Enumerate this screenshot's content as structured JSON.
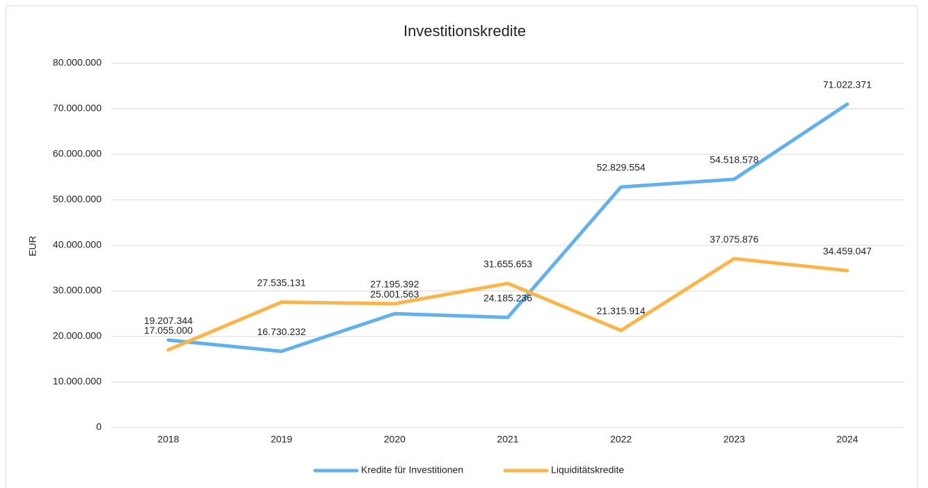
{
  "chart_data": {
    "type": "line",
    "title": "Investitionskredite",
    "y_label": "EUR",
    "categories": [
      "2018",
      "2019",
      "2020",
      "2021",
      "2022",
      "2023",
      "2024"
    ],
    "series": [
      {
        "name": "Kredite für Investitionen",
        "color": "#62b0ec",
        "values": [
          19207344,
          16730232,
          25001563,
          24185236,
          52829554,
          54518578,
          71022371
        ],
        "value_labels": [
          "19.207.344",
          "16.730.232",
          "25.001.563",
          "24.185.236",
          "52.829.554",
          "54.518.578",
          "71.022.371"
        ]
      },
      {
        "name": "Liquiditätskredite",
        "color": "#fdb54b",
        "values": [
          17055000,
          27535131,
          27195392,
          31655653,
          21315914,
          37075876,
          34459047
        ],
        "value_labels": [
          "17.055.000",
          "27.535.131",
          "27.195.392",
          "31.655.653",
          "21.315.914",
          "37.075.876",
          "34.459.047"
        ]
      }
    ],
    "ylim": [
      0,
      80000000
    ],
    "yticks": [
      0,
      {
        "value": 10000000,
        "label": "10.000.000"
      },
      {
        "value": 20000000,
        "label": "20.000.000"
      },
      {
        "value": 30000000,
        "label": "30.000.000"
      },
      {
        "value": 40000000,
        "label": "40.000.000"
      },
      {
        "value": 50000000,
        "label": "50.000.000"
      },
      {
        "value": 60000000,
        "label": "60.000.000"
      },
      {
        "value": 70000000,
        "label": "70.000.000"
      },
      {
        "value": 80000000,
        "label": "80.000.000"
      }
    ],
    "grid": true,
    "legend": "bottom"
  }
}
